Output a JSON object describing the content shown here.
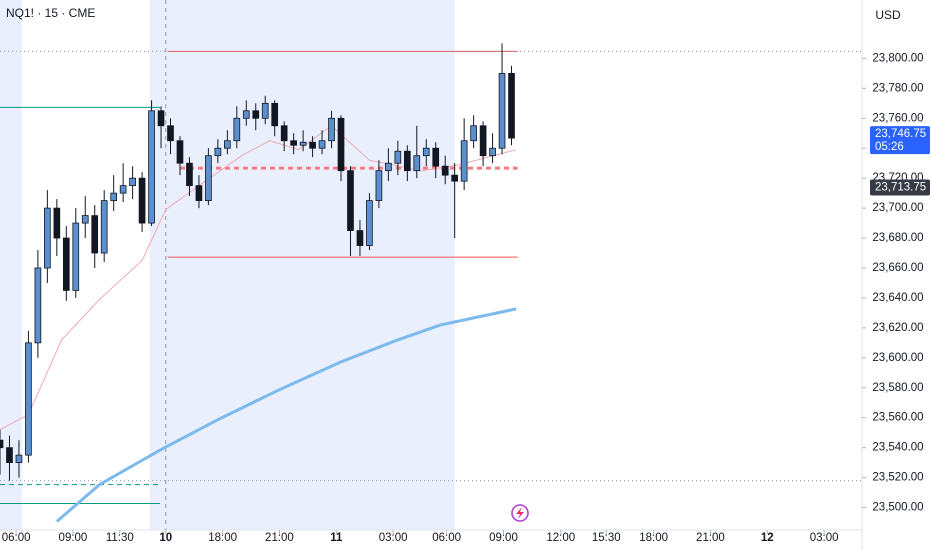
{
  "chart_data": {
    "type": "candlestick",
    "title": "NQ1! · 15 · CME",
    "currency": "USD",
    "up_color": "#5b8fd0",
    "down_color": "#131722",
    "xlim": [
      0,
      182
    ],
    "ylim": [
      23485,
      23839
    ],
    "xticks": [
      {
        "value": 3.4,
        "label": "06:00"
      },
      {
        "value": 15.4,
        "label": "09:00"
      },
      {
        "value": 25.3,
        "label": "11:30"
      },
      {
        "value": 35,
        "label": "10"
      },
      {
        "value": 47,
        "label": "18:00"
      },
      {
        "value": 59,
        "label": "21:00"
      },
      {
        "value": 71,
        "label": "11"
      },
      {
        "value": 83,
        "label": "03:00"
      },
      {
        "value": 94.3,
        "label": "06:00"
      },
      {
        "value": 106.3,
        "label": "09:00"
      },
      {
        "value": 118.4,
        "label": "12:00"
      },
      {
        "value": 128,
        "label": "15:30"
      },
      {
        "value": 138,
        "label": "18:00"
      },
      {
        "value": 150,
        "label": "21:00"
      },
      {
        "value": 162,
        "label": "12"
      },
      {
        "value": 174,
        "label": "03:00"
      }
    ],
    "yticks": [
      {
        "value": 23500,
        "label": "23,500.00"
      },
      {
        "value": 23520,
        "label": "23,520.00"
      },
      {
        "value": 23540,
        "label": "23,540.00"
      },
      {
        "value": 23560,
        "label": "23,560.00"
      },
      {
        "value": 23580,
        "label": "23,580.00"
      },
      {
        "value": 23600,
        "label": "23,600.00"
      },
      {
        "value": 23620,
        "label": "23,620.00"
      },
      {
        "value": 23640,
        "label": "23,640.00"
      },
      {
        "value": 23660,
        "label": "23,660.00"
      },
      {
        "value": 23680,
        "label": "23,680.00"
      },
      {
        "value": 23700,
        "label": "23,700.00"
      },
      {
        "value": 23720,
        "label": "23,720.00"
      },
      {
        "value": 23740,
        "label": "23,740.00"
      },
      {
        "value": 23760,
        "label": "23,760.00"
      },
      {
        "value": 23780,
        "label": "23,780.00"
      },
      {
        "value": 23800,
        "label": "23,800.00"
      }
    ],
    "highlight_ranges": [
      [
        0,
        4.6
      ],
      [
        31.6,
        96
      ]
    ],
    "session_break": 35,
    "x": [
      0,
      2,
      4,
      6,
      8,
      10,
      12,
      14,
      16,
      18,
      20,
      22,
      24,
      26,
      28,
      30,
      32,
      34,
      36,
      38,
      40,
      42,
      44,
      46,
      48,
      50,
      52,
      54,
      56,
      58,
      60,
      62,
      64,
      66,
      68,
      70,
      72,
      74,
      76,
      78,
      80,
      82,
      84,
      86,
      88,
      90,
      92,
      94,
      96,
      98,
      100,
      102,
      104,
      106,
      108
    ],
    "open": [
      23545,
      23540,
      23530,
      23535,
      23610,
      23660,
      23700,
      23680,
      23645,
      23690,
      23695,
      23670,
      23705,
      23710,
      23715,
      23720,
      23690,
      23765,
      23755,
      23745,
      23730,
      23715,
      23705,
      23735,
      23740,
      23745,
      23760,
      23765,
      23760,
      23770,
      23755,
      23745,
      23742,
      23744,
      23740,
      23745,
      23760,
      23725,
      23685,
      23675,
      23705,
      23725,
      23730,
      23738,
      23725,
      23735,
      23740,
      23728,
      23722,
      23718,
      23745,
      23755,
      23735,
      23740,
      23790
    ],
    "high": [
      23552,
      23548,
      23545,
      23618,
      23672,
      23712,
      23706,
      23688,
      23700,
      23708,
      23702,
      23712,
      23722,
      23730,
      23728,
      23724,
      23772,
      23768,
      23760,
      23748,
      23734,
      23722,
      23740,
      23746,
      23752,
      23768,
      23772,
      23770,
      23775,
      23772,
      23758,
      23750,
      23752,
      23748,
      23752,
      23765,
      23762,
      23728,
      23692,
      23710,
      23732,
      23740,
      23745,
      23742,
      23755,
      23746,
      23744,
      23735,
      23730,
      23760,
      23762,
      23758,
      23750,
      23810,
      23795
    ],
    "low": [
      23522,
      23518,
      23520,
      23530,
      23600,
      23650,
      23668,
      23638,
      23640,
      23680,
      23660,
      23664,
      23698,
      23704,
      23706,
      23684,
      23688,
      23740,
      23736,
      23722,
      23708,
      23700,
      23702,
      23730,
      23736,
      23740,
      23755,
      23752,
      23756,
      23748,
      23738,
      23736,
      23738,
      23734,
      23736,
      23740,
      23718,
      23668,
      23668,
      23672,
      23700,
      23718,
      23722,
      23718,
      23720,
      23728,
      23720,
      23716,
      23680,
      23712,
      23740,
      23728,
      23730,
      23736,
      23742
    ],
    "close": [
      23540,
      23530,
      23535,
      23610,
      23660,
      23700,
      23680,
      23645,
      23690,
      23695,
      23670,
      23705,
      23710,
      23715,
      23720,
      23690,
      23765,
      23755,
      23745,
      23730,
      23715,
      23705,
      23735,
      23740,
      23745,
      23760,
      23765,
      23760,
      23770,
      23755,
      23745,
      23742,
      23744,
      23740,
      23745,
      23760,
      23725,
      23685,
      23675,
      23705,
      23725,
      23730,
      23738,
      23725,
      23735,
      23740,
      23728,
      23722,
      23718,
      23745,
      23755,
      23735,
      23740,
      23790,
      23746.75
    ],
    "series": [
      {
        "color": "#7cb9ec",
        "width": 3,
        "x": [
          12,
          21,
          34,
          46,
          59,
          72,
          84,
          93,
          109
        ],
        "values": [
          23490.7,
          23515.3,
          23538.7,
          23558.7,
          23578.7,
          23597.3,
          23612,
          23622,
          23632.7
        ]
      },
      {
        "color": "#f0a8b4",
        "width": 1,
        "x": [
          0,
          6,
          13,
          21,
          30,
          35,
          42,
          51,
          57,
          63,
          70,
          78,
          89,
          97,
          109
        ],
        "values": [
          23552,
          23562,
          23612,
          23639,
          23665,
          23699,
          23715,
          23735,
          23745,
          23739,
          23755,
          23732,
          23725,
          23729,
          23739
        ]
      }
    ],
    "levels": [
      {
        "value": 23804.7,
        "x0": 35.4,
        "x1": 109.3,
        "color": "#f05350",
        "style": "solid",
        "width": 1
      },
      {
        "value": 23667.3,
        "x0": 35.4,
        "x1": 109.3,
        "color": "#f05350",
        "style": "solid",
        "width": 1
      },
      {
        "value": 23726.7,
        "x0": 38,
        "x1": 109.3,
        "color": "#f77c80",
        "style": "dashed",
        "width": 3
      },
      {
        "value": 23767.3,
        "x0": 0,
        "x1": 33.8,
        "color": "#089981",
        "style": "solid",
        "width": 1
      },
      {
        "value": 23515.3,
        "x0": 0,
        "x1": 33.8,
        "color": "#089981",
        "style": "dashed",
        "width": 1
      },
      {
        "value": 23502.7,
        "x0": 0,
        "x1": 33.8,
        "color": "#089981",
        "style": "solid",
        "width": 1
      },
      {
        "value": 23804.7,
        "x0": 0,
        "x1": 182,
        "color": "#9598a1",
        "style": "dotted",
        "width": 1
      },
      {
        "value": 23518,
        "x0": 0,
        "x1": 182,
        "color": "#9598a1",
        "style": "dotted",
        "width": 1
      }
    ],
    "last_price": {
      "value": 23746.75,
      "label": "23,746.75",
      "color": "#2962ff"
    },
    "countdown": "05:26",
    "marker_price": {
      "value": 23713.75,
      "label": "23,713.75",
      "color": "#363a45"
    }
  }
}
